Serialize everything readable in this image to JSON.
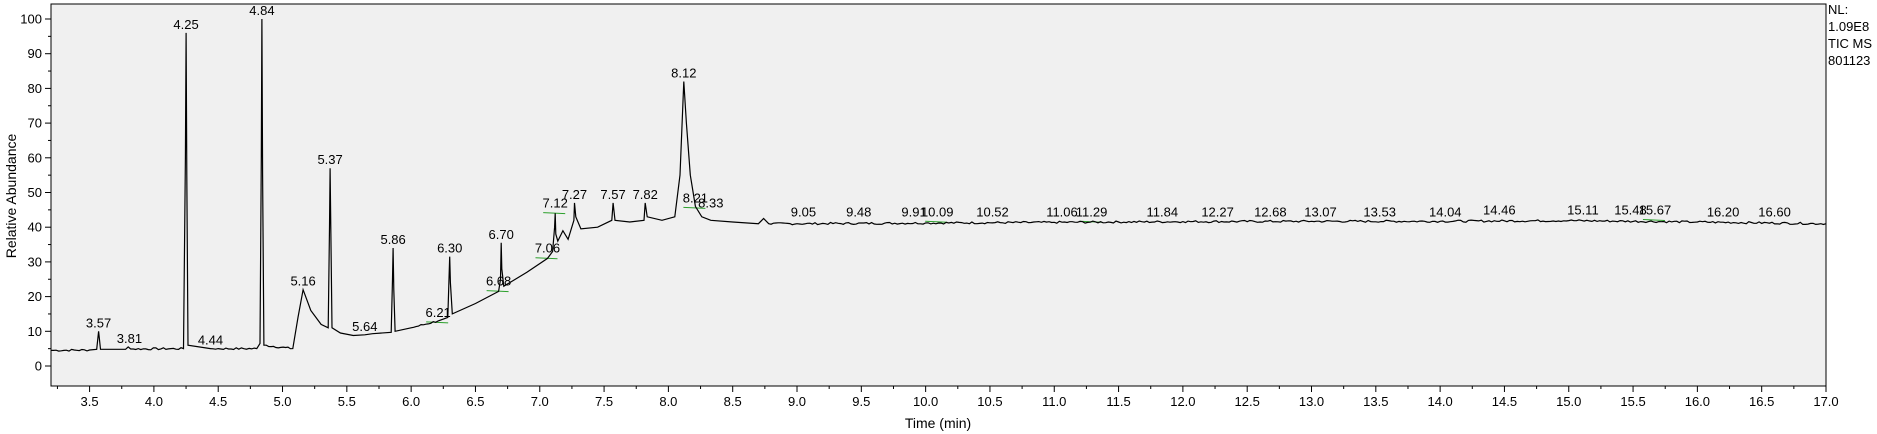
{
  "chart_data": {
    "type": "line",
    "title": "",
    "xlabel": "Time (min)",
    "ylabel": "Relative Abundance",
    "xlim": [
      3.2,
      17.0
    ],
    "ylim": [
      0,
      100
    ],
    "xticks": [
      3.5,
      4.0,
      4.5,
      5.0,
      5.5,
      6.0,
      6.5,
      7.0,
      7.5,
      8.0,
      8.5,
      9.0,
      9.5,
      10.0,
      10.5,
      11.0,
      11.5,
      12.0,
      12.5,
      13.0,
      13.5,
      14.0,
      14.5,
      15.0,
      15.5,
      16.0,
      16.5,
      17.0
    ],
    "xtick_labels": [
      "3.5",
      "4.0",
      "4.5",
      "5.0",
      "5.5",
      "6.0",
      "6.5",
      "7.0",
      "7.5",
      "8.0",
      "8.5",
      "9.0",
      "9.5",
      "10.0",
      "10.5",
      "11.0",
      "11.5",
      "12.0",
      "12.5",
      "13.0",
      "13.5",
      "14.0",
      "14.5",
      "15.0",
      "15.5",
      "16.0",
      "16.5",
      "17.0"
    ],
    "yticks": [
      0,
      10,
      20,
      30,
      40,
      50,
      60,
      70,
      80,
      90,
      100
    ],
    "ytick_labels": [
      "0",
      "10",
      "20",
      "30",
      "40",
      "50",
      "60",
      "70",
      "80",
      "90",
      "100"
    ],
    "background": "#f0f0f0",
    "line_color": "#000000",
    "baseline_marker_color": "#2ca02c",
    "annotation_lines": [
      "NL:",
      "1.09E8",
      "TIC  MS",
      "801123"
    ],
    "peaks": [
      {
        "label": "3.57",
        "x": 3.57,
        "y": 10.0
      },
      {
        "label": "3.81",
        "x": 3.81,
        "y": 5.5
      },
      {
        "label": "4.25",
        "x": 4.25,
        "y": 96.0
      },
      {
        "label": "4.44",
        "x": 4.44,
        "y": 5.0
      },
      {
        "label": "4.84",
        "x": 4.84,
        "y": 100.0
      },
      {
        "label": "5.16",
        "x": 5.16,
        "y": 22.0
      },
      {
        "label": "5.37",
        "x": 5.37,
        "y": 57.0
      },
      {
        "label": "5.64",
        "x": 5.64,
        "y": 9.0
      },
      {
        "label": "5.86",
        "x": 5.86,
        "y": 34.0
      },
      {
        "label": "6.21",
        "x": 6.21,
        "y": 13.0
      },
      {
        "label": "6.30",
        "x": 6.3,
        "y": 31.5
      },
      {
        "label": "6.68",
        "x": 6.68,
        "y": 22.0
      },
      {
        "label": "6.70",
        "x": 6.7,
        "y": 35.5
      },
      {
        "label": "7.06",
        "x": 7.06,
        "y": 31.5
      },
      {
        "label": "7.12",
        "x": 7.12,
        "y": 44.5
      },
      {
        "label": "7.27",
        "x": 7.27,
        "y": 47.0
      },
      {
        "label": "7.57",
        "x": 7.57,
        "y": 47.0
      },
      {
        "label": "7.82",
        "x": 7.82,
        "y": 47.0
      },
      {
        "label": "8.12",
        "x": 8.12,
        "y": 82.0
      },
      {
        "label": "8.21",
        "x": 8.21,
        "y": 46.0
      },
      {
        "label": "8.33",
        "x": 8.33,
        "y": 44.5
      },
      {
        "label": "9.05",
        "x": 9.05,
        "y": 42.0
      },
      {
        "label": "9.48",
        "x": 9.48,
        "y": 42.0
      },
      {
        "label": "9.91",
        "x": 9.91,
        "y": 42.0
      },
      {
        "label": "10.09",
        "x": 10.09,
        "y": 42.0
      },
      {
        "label": "10.52",
        "x": 10.52,
        "y": 42.0
      },
      {
        "label": "11.06",
        "x": 11.06,
        "y": 42.0
      },
      {
        "label": "11.29",
        "x": 11.29,
        "y": 42.0
      },
      {
        "label": "11.84",
        "x": 11.84,
        "y": 42.0
      },
      {
        "label": "12.27",
        "x": 12.27,
        "y": 42.0
      },
      {
        "label": "12.68",
        "x": 12.68,
        "y": 42.0
      },
      {
        "label": "13.07",
        "x": 13.07,
        "y": 42.0
      },
      {
        "label": "13.53",
        "x": 13.53,
        "y": 42.0
      },
      {
        "label": "14.04",
        "x": 14.04,
        "y": 42.0
      },
      {
        "label": "14.46",
        "x": 14.46,
        "y": 42.5
      },
      {
        "label": "15.11",
        "x": 15.11,
        "y": 42.5
      },
      {
        "label": "15.48",
        "x": 15.48,
        "y": 42.5
      },
      {
        "label": "15.67",
        "x": 15.67,
        "y": 42.5
      },
      {
        "label": "16.20",
        "x": 16.2,
        "y": 42.0
      },
      {
        "label": "16.60",
        "x": 16.6,
        "y": 42.0
      }
    ],
    "trace": [
      [
        3.2,
        4.5
      ],
      [
        3.5,
        4.6
      ],
      [
        3.555,
        4.8
      ],
      [
        3.57,
        10.0
      ],
      [
        3.585,
        4.8
      ],
      [
        3.78,
        4.8
      ],
      [
        3.8,
        5.5
      ],
      [
        3.82,
        4.9
      ],
      [
        4.23,
        5.0
      ],
      [
        4.245,
        60.0
      ],
      [
        4.25,
        96.0
      ],
      [
        4.256,
        55.0
      ],
      [
        4.265,
        6.0
      ],
      [
        4.44,
        5.0
      ],
      [
        4.8,
        5.0
      ],
      [
        4.825,
        6.5
      ],
      [
        4.835,
        60.0
      ],
      [
        4.84,
        100.0
      ],
      [
        4.845,
        55.0
      ],
      [
        4.855,
        6.0
      ],
      [
        5.08,
        5.0
      ],
      [
        5.12,
        14.0
      ],
      [
        5.16,
        22.0
      ],
      [
        5.22,
        16.0
      ],
      [
        5.3,
        12.0
      ],
      [
        5.355,
        11.0
      ],
      [
        5.365,
        40.0
      ],
      [
        5.37,
        57.0
      ],
      [
        5.375,
        40.0
      ],
      [
        5.385,
        11.0
      ],
      [
        5.45,
        9.5
      ],
      [
        5.55,
        8.8
      ],
      [
        5.64,
        9.0
      ],
      [
        5.7,
        9.3
      ],
      [
        5.845,
        9.7
      ],
      [
        5.855,
        25.0
      ],
      [
        5.86,
        34.0
      ],
      [
        5.865,
        22.0
      ],
      [
        5.875,
        10.0
      ],
      [
        6.0,
        11.0
      ],
      [
        6.21,
        13.0
      ],
      [
        6.285,
        14.0
      ],
      [
        6.295,
        26.0
      ],
      [
        6.3,
        31.5
      ],
      [
        6.305,
        24.0
      ],
      [
        6.32,
        15.0
      ],
      [
        6.5,
        18.0
      ],
      [
        6.68,
        21.5
      ],
      [
        6.695,
        25.0
      ],
      [
        6.7,
        35.5
      ],
      [
        6.705,
        28.0
      ],
      [
        6.72,
        23.0
      ],
      [
        6.9,
        27.0
      ],
      [
        7.06,
        31.0
      ],
      [
        7.1,
        33.0
      ],
      [
        7.115,
        40.0
      ],
      [
        7.12,
        44.0
      ],
      [
        7.125,
        38.0
      ],
      [
        7.14,
        36.0
      ],
      [
        7.18,
        39.0
      ],
      [
        7.22,
        36.5
      ],
      [
        7.265,
        42.0
      ],
      [
        7.27,
        47.0
      ],
      [
        7.28,
        43.0
      ],
      [
        7.32,
        39.5
      ],
      [
        7.45,
        40.0
      ],
      [
        7.56,
        42.0
      ],
      [
        7.57,
        47.0
      ],
      [
        7.585,
        42.0
      ],
      [
        7.7,
        41.5
      ],
      [
        7.81,
        42.0
      ],
      [
        7.82,
        47.0
      ],
      [
        7.835,
        43.0
      ],
      [
        7.95,
        42.0
      ],
      [
        8.05,
        43.0
      ],
      [
        8.09,
        55.0
      ],
      [
        8.12,
        82.0
      ],
      [
        8.14,
        70.0
      ],
      [
        8.17,
        55.0
      ],
      [
        8.21,
        46.0
      ],
      [
        8.26,
        43.0
      ],
      [
        8.33,
        42.0
      ],
      [
        8.5,
        41.5
      ],
      [
        8.7,
        41.0
      ],
      [
        8.74,
        42.5
      ],
      [
        8.78,
        41.0
      ],
      [
        9.0,
        41.0
      ],
      [
        10.0,
        41.2
      ],
      [
        11.0,
        41.4
      ],
      [
        12.0,
        41.6
      ],
      [
        13.0,
        41.7
      ],
      [
        14.0,
        41.7
      ],
      [
        15.0,
        41.9
      ],
      [
        16.0,
        41.5
      ],
      [
        17.0,
        41.0
      ]
    ]
  }
}
